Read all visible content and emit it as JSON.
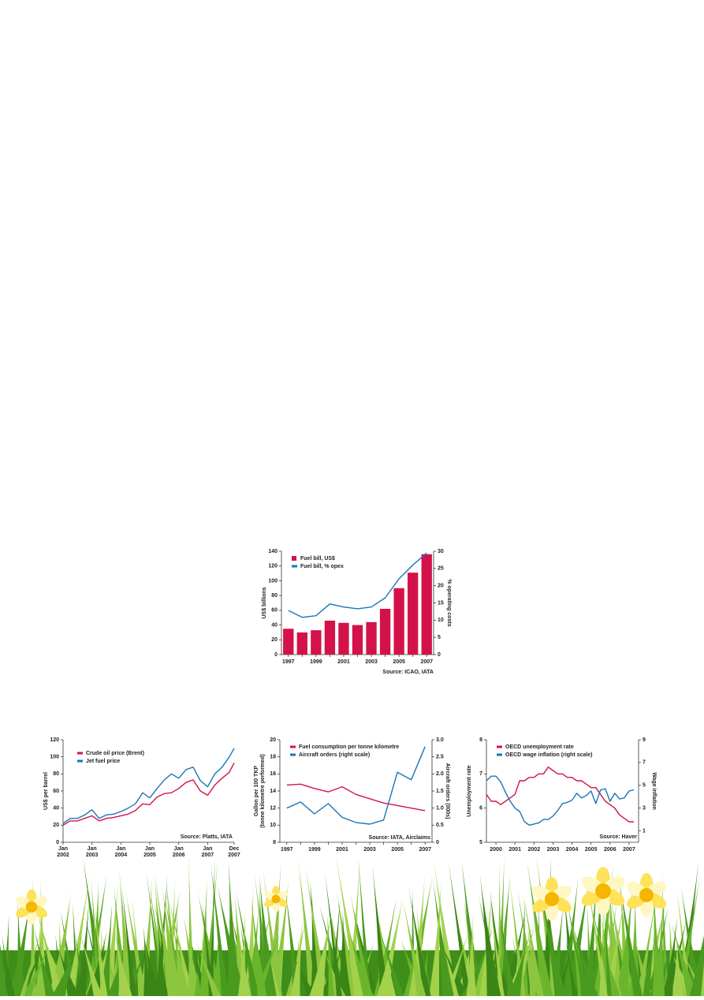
{
  "chart_data": [
    {
      "type": "bar",
      "categories": [
        "1997",
        null,
        "1999",
        null,
        "2001",
        null,
        "2003",
        null,
        "2005",
        null,
        "2007"
      ],
      "series": [
        {
          "name": "Fuel bill, US$",
          "color": "#d4124a",
          "type": "bar",
          "values": [
            35,
            30,
            33,
            46,
            43,
            40,
            44,
            62,
            90,
            111,
            136
          ]
        },
        {
          "name": "Fuel bill, % opex",
          "color": "#1a75b8",
          "type": "line",
          "axis": "y2",
          "values": [
            12.8,
            10.8,
            11.3,
            14.7,
            13.8,
            13.3,
            13.8,
            16.5,
            22,
            26,
            29.5
          ]
        }
      ],
      "ylabel": "US$ billions",
      "y2label": "% operating costs",
      "ylim": [
        0,
        140
      ],
      "yticks": [
        0,
        20,
        40,
        60,
        80,
        100,
        120,
        140
      ],
      "y2lim": [
        0,
        30
      ],
      "y2ticks": [
        0,
        5,
        10,
        15,
        20,
        25,
        30
      ],
      "source": "Source: ICAO, IATA",
      "legend": "upper left"
    },
    {
      "type": "line",
      "x": [
        "2002-01",
        "2002-04",
        "2002-07",
        "2002-10",
        "2003-01",
        "2003-04",
        "2003-07",
        "2003-10",
        "2004-01",
        "2004-04",
        "2004-07",
        "2004-10",
        "2005-01",
        "2005-04",
        "2005-07",
        "2005-10",
        "2006-01",
        "2006-04",
        "2006-07",
        "2006-10",
        "2007-01",
        "2007-04",
        "2007-07",
        "2007-10",
        "2007-12"
      ],
      "series": [
        {
          "name": "Crude oil price (Brent)",
          "color": "#d4124a",
          "values": [
            20,
            25,
            25,
            28,
            31,
            25,
            28,
            29,
            31,
            33,
            37,
            45,
            44,
            53,
            57,
            58,
            63,
            70,
            73,
            60,
            55,
            67,
            75,
            82,
            93
          ]
        },
        {
          "name": "Jet fuel price",
          "color": "#1a75b8",
          "values": [
            22,
            28,
            28,
            32,
            38,
            28,
            32,
            33,
            36,
            40,
            45,
            58,
            52,
            63,
            73,
            80,
            75,
            85,
            88,
            72,
            65,
            80,
            88,
            100,
            110
          ]
        }
      ],
      "ylabel": "US$ per barrel",
      "xlim": [
        "2002-01",
        "2007-12"
      ],
      "xticks": [
        {
          "value": "2002-01",
          "label": [
            "Jan",
            "2002"
          ]
        },
        {
          "value": "2003-01",
          "label": [
            "Jan",
            "2003"
          ]
        },
        {
          "value": "2004-01",
          "label": [
            "Jan",
            "2004"
          ]
        },
        {
          "value": "2005-01",
          "label": [
            "Jan",
            "2005"
          ]
        },
        {
          "value": "2006-01",
          "label": [
            "Jan",
            "2006"
          ]
        },
        {
          "value": "2007-01",
          "label": [
            "Jan",
            "2007"
          ]
        },
        {
          "value": "2007-12",
          "label": [
            "Dec",
            "2007"
          ]
        }
      ],
      "ylim": [
        0,
        120
      ],
      "yticks": [
        0,
        20,
        40,
        60,
        80,
        100,
        120
      ],
      "source": "Source: Platts, IATA",
      "legend": "upper left"
    },
    {
      "type": "line",
      "categories": [
        "1997",
        null,
        "1999",
        null,
        "2001",
        null,
        "2003",
        null,
        "2005",
        null,
        "2007"
      ],
      "series": [
        {
          "name": "Fuel consumption per tonne kilometre",
          "color": "#d4124a",
          "values": [
            14.7,
            14.8,
            14.3,
            13.9,
            14.5,
            13.6,
            13.1,
            12.6,
            12.3,
            12.0,
            11.7
          ]
        },
        {
          "name": "Aircraft orders (right scale)",
          "color": "#1a75b8",
          "axis": "y2",
          "values": [
            1.0,
            1.18,
            0.83,
            1.13,
            0.73,
            0.58,
            0.53,
            0.65,
            2.05,
            1.83,
            2.8
          ]
        }
      ],
      "ylabel": [
        "Gallon per 100 TKP",
        "(tonne kilometre performed)"
      ],
      "y2label": "Aircraft orders (000s)",
      "ylim": [
        8,
        20
      ],
      "yticks": [
        8,
        10,
        12,
        14,
        16,
        18,
        20
      ],
      "y2lim": [
        0,
        3
      ],
      "y2ticks": [
        0,
        {
          "value": 0.5,
          "label": "0.5"
        },
        {
          "value": 1,
          "label": "1.0"
        },
        {
          "value": 1.5,
          "label": "1.5"
        },
        {
          "value": 2,
          "label": "2.0"
        },
        {
          "value": 2.5,
          "label": "2.5"
        },
        {
          "value": 3,
          "label": "3.0"
        }
      ],
      "source": "Source: IATA, Airclaims",
      "legend": "upper left"
    },
    {
      "type": "line",
      "x": [
        2000,
        2000.25,
        2000.5,
        2000.75,
        2001,
        2001.25,
        2001.5,
        2001.75,
        2002,
        2002.25,
        2002.5,
        2002.75,
        2003,
        2003.25,
        2003.5,
        2003.75,
        2004,
        2004.25,
        2004.5,
        2004.75,
        2005,
        2005.25,
        2005.5,
        2005.75,
        2006,
        2006.25,
        2006.5,
        2006.75,
        2007,
        2007.25,
        2007.5,
        2007.75
      ],
      "series": [
        {
          "name": "OECD unemployment rate",
          "color": "#d4124a",
          "values": [
            6.4,
            6.2,
            6.2,
            6.1,
            6.2,
            6.3,
            6.4,
            6.8,
            6.8,
            6.9,
            6.9,
            7.0,
            7.0,
            7.2,
            7.1,
            7.0,
            7.0,
            6.9,
            6.9,
            6.8,
            6.8,
            6.7,
            6.6,
            6.6,
            6.4,
            6.2,
            6.1,
            6.0,
            5.8,
            5.7,
            5.6,
            5.6
          ]
        },
        {
          "name": "OECD wage inflation (right scale)",
          "color": "#1a75b8",
          "axis": "y2",
          "values": [
            5.4,
            5.8,
            5.8,
            5.3,
            4.4,
            3.6,
            3.0,
            2.7,
            1.8,
            1.5,
            1.6,
            1.7,
            2.0,
            2.0,
            2.3,
            2.8,
            3.4,
            3.5,
            3.7,
            4.3,
            3.9,
            4.1,
            4.5,
            3.4,
            4.6,
            4.7,
            3.6,
            4.3,
            3.8,
            3.9,
            4.5,
            4.6
          ]
        }
      ],
      "ylabel": "Unemployment rate",
      "y2label": "Wage inflation",
      "xlim": [
        2000,
        2008
      ],
      "xticks": [
        {
          "value": 2000.5,
          "label": "2000"
        },
        {
          "value": 2001.5,
          "label": "2001"
        },
        {
          "value": 2002.5,
          "label": "2002"
        },
        {
          "value": 2003.5,
          "label": "2003"
        },
        {
          "value": 2004.5,
          "label": "2004"
        },
        {
          "value": 2005.5,
          "label": "2005"
        },
        {
          "value": 2006.5,
          "label": "2006"
        },
        {
          "value": 2007.5,
          "label": "2007"
        }
      ],
      "ylim": [
        5,
        8
      ],
      "yticks": [
        5,
        6,
        7,
        8
      ],
      "y2lim": [
        0,
        9
      ],
      "y2ticks": [
        1,
        3,
        5,
        7,
        9
      ],
      "source": "Source: Haver",
      "legend": "upper left"
    }
  ]
}
